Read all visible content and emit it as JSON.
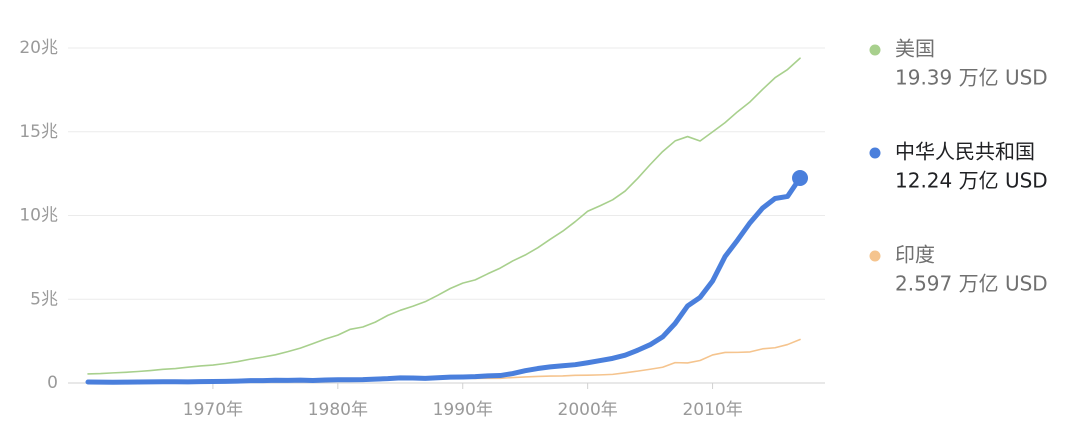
{
  "chart_data": {
    "type": "line",
    "x": [
      1960,
      1961,
      1962,
      1963,
      1964,
      1965,
      1966,
      1967,
      1968,
      1969,
      1970,
      1971,
      1972,
      1973,
      1974,
      1975,
      1976,
      1977,
      1978,
      1979,
      1980,
      1981,
      1982,
      1983,
      1984,
      1985,
      1986,
      1987,
      1988,
      1989,
      1990,
      1991,
      1992,
      1993,
      1994,
      1995,
      1996,
      1997,
      1998,
      1999,
      2000,
      2001,
      2002,
      2003,
      2004,
      2005,
      2006,
      2007,
      2008,
      2009,
      2010,
      2011,
      2012,
      2013,
      2014,
      2015,
      2016,
      2017
    ],
    "xlim": [
      1960,
      2019
    ],
    "xticks": [
      {
        "value": 1970,
        "label": "1970年"
      },
      {
        "value": 1980,
        "label": "1980年"
      },
      {
        "value": 1990,
        "label": "1990年"
      },
      {
        "value": 2000,
        "label": "2000年"
      },
      {
        "value": 2010,
        "label": "2010年"
      }
    ],
    "ylim": [
      0,
      20
    ],
    "yticks": [
      0,
      {
        "value": 5,
        "label": "5兆"
      },
      {
        "value": 10,
        "label": "10兆"
      },
      {
        "value": 15,
        "label": "15兆"
      },
      {
        "value": 20,
        "label": "20兆"
      }
    ],
    "grid": true,
    "legend": "right",
    "series": [
      {
        "name": "美国",
        "color": "#a8d08d",
        "latest_label": "19.39 万亿 USD",
        "values": [
          0.543,
          0.563,
          0.605,
          0.638,
          0.686,
          0.744,
          0.815,
          0.862,
          0.943,
          1.019,
          1.073,
          1.165,
          1.28,
          1.425,
          1.545,
          1.684,
          1.873,
          2.082,
          2.352,
          2.627,
          2.857,
          3.207,
          3.343,
          3.634,
          4.037,
          4.339,
          4.579,
          4.855,
          5.236,
          5.642,
          5.963,
          6.158,
          6.52,
          6.859,
          7.287,
          7.64,
          8.073,
          8.577,
          9.062,
          9.631,
          10.252,
          10.582,
          10.936,
          11.458,
          12.214,
          13.037,
          13.815,
          14.452,
          14.713,
          14.449,
          14.992,
          15.543,
          16.197,
          16.785,
          17.527,
          18.225,
          18.715,
          19.39
        ]
      },
      {
        "name": "印度",
        "color": "#f5c48e",
        "latest_label": "2.597 万亿 USD",
        "values": [
          0.037,
          0.039,
          0.042,
          0.049,
          0.056,
          0.059,
          0.046,
          0.05,
          0.053,
          0.058,
          0.062,
          0.067,
          0.071,
          0.085,
          0.099,
          0.098,
          0.102,
          0.121,
          0.137,
          0.152,
          0.186,
          0.193,
          0.201,
          0.218,
          0.212,
          0.232,
          0.248,
          0.279,
          0.296,
          0.296,
          0.321,
          0.27,
          0.288,
          0.279,
          0.327,
          0.36,
          0.392,
          0.415,
          0.421,
          0.458,
          0.468,
          0.485,
          0.515,
          0.608,
          0.709,
          0.82,
          0.94,
          1.217,
          1.199,
          1.342,
          1.676,
          1.823,
          1.828,
          1.857,
          2.039,
          2.104,
          2.295,
          2.597
        ]
      },
      {
        "name": "中华人民共和国",
        "color": "#4a7fdc",
        "latest_label": "12.24 万亿 USD",
        "highlight": true,
        "values": [
          0.06,
          0.05,
          0.047,
          0.051,
          0.059,
          0.07,
          0.076,
          0.072,
          0.07,
          0.079,
          0.093,
          0.1,
          0.114,
          0.139,
          0.144,
          0.163,
          0.154,
          0.175,
          0.15,
          0.178,
          0.191,
          0.196,
          0.205,
          0.231,
          0.26,
          0.309,
          0.301,
          0.273,
          0.312,
          0.348,
          0.361,
          0.383,
          0.427,
          0.445,
          0.564,
          0.734,
          0.864,
          0.962,
          1.029,
          1.094,
          1.211,
          1.339,
          1.471,
          1.66,
          1.955,
          2.286,
          2.752,
          3.552,
          4.598,
          5.11,
          6.087,
          7.552,
          8.532,
          9.57,
          10.439,
          11.016,
          11.138,
          12.24
        ]
      }
    ]
  }
}
